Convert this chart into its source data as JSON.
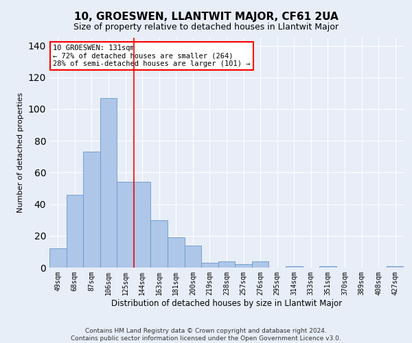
{
  "title": "10, GROESWEN, LLANTWIT MAJOR, CF61 2UA",
  "subtitle": "Size of property relative to detached houses in Llantwit Major",
  "xlabel": "Distribution of detached houses by size in Llantwit Major",
  "ylabel": "Number of detached properties",
  "footer1": "Contains HM Land Registry data © Crown copyright and database right 2024.",
  "footer2": "Contains public sector information licensed under the Open Government Licence v3.0.",
  "categories": [
    "49sqm",
    "68sqm",
    "87sqm",
    "106sqm",
    "125sqm",
    "144sqm",
    "163sqm",
    "181sqm",
    "200sqm",
    "219sqm",
    "238sqm",
    "257sqm",
    "276sqm",
    "295sqm",
    "314sqm",
    "333sqm",
    "351sqm",
    "370sqm",
    "389sqm",
    "408sqm",
    "427sqm"
  ],
  "values": [
    12,
    46,
    73,
    107,
    54,
    54,
    30,
    19,
    14,
    3,
    4,
    2,
    4,
    0,
    1,
    0,
    1,
    0,
    0,
    0,
    1
  ],
  "bar_color": "#aec6e8",
  "bar_edge_color": "#6699cc",
  "vertical_line_x": 4.5,
  "annotation_text": "10 GROESWEN: 131sqm\n← 72% of detached houses are smaller (264)\n28% of semi-detached houses are larger (101) →",
  "annotation_box_color": "white",
  "annotation_box_edge": "red",
  "vline_color": "red",
  "bg_color": "#e8eef8",
  "ylim": [
    0,
    145
  ],
  "xlim": [
    -0.5,
    20.5
  ],
  "title_fontsize": 11,
  "subtitle_fontsize": 9,
  "ylabel_fontsize": 8,
  "xlabel_fontsize": 8.5,
  "tick_fontsize": 7,
  "annot_fontsize": 7.5,
  "footer_fontsize": 6.5
}
